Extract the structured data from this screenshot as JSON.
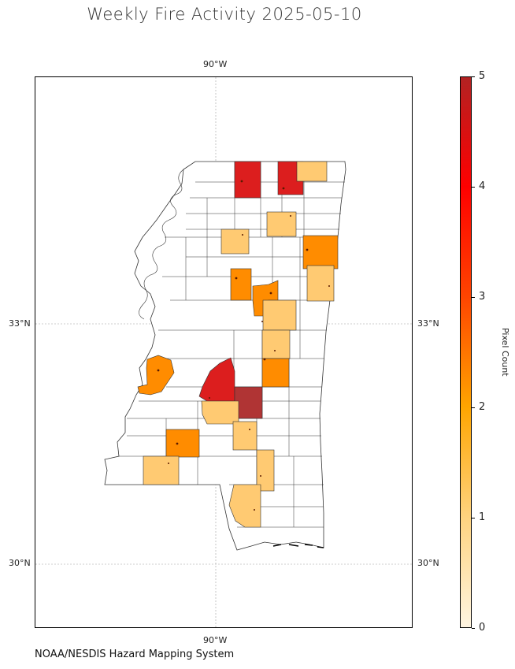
{
  "title": "Weekly Fire Activity 2025-05-10",
  "source": "NOAA/NESDIS Hazard Mapping System",
  "map": {
    "region": "Mississippi counties",
    "gridlines": {
      "longitude": [
        "90°W"
      ],
      "latitude": [
        "33°N",
        "30°N"
      ]
    },
    "colors": {
      "land": "#ffffff",
      "boundary": "#333333",
      "gridline": "#9e9e9e",
      "fire_point": "#5a1a00"
    },
    "legend": {
      "title": "Pixel Count",
      "ticks": [
        "0",
        "1",
        "2",
        "3",
        "4",
        "5"
      ],
      "range": [
        0,
        5
      ],
      "colors": [
        "#fff5e1",
        "#ffd37f",
        "#ffa500",
        "#ff4500",
        "#ff0000",
        "#b22222"
      ]
    }
  }
}
